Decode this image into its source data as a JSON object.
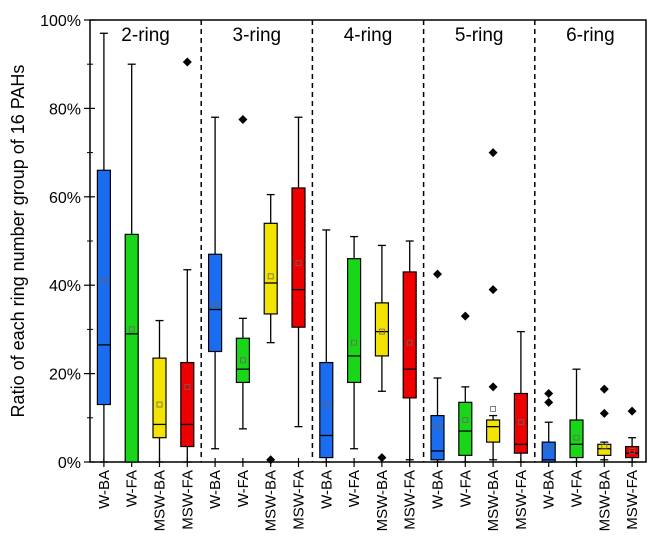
{
  "chart_data": {
    "type": "boxplot",
    "ylabel": "Ratio of each ring number group of 16 PAHs",
    "ylim": [
      0,
      100
    ],
    "y_ticks": [
      "0%",
      "20%",
      "40%",
      "60%",
      "80%",
      "100%"
    ],
    "y_tick_values": [
      0,
      20,
      40,
      60,
      80,
      100
    ],
    "grid": false,
    "colors": {
      "W-BA": "#1a6cf0",
      "W-FA": "#19d619",
      "MSW-BA": "#f3e300",
      "MSW-FA": "#ee0000"
    },
    "groups": [
      {
        "title": "2-ring",
        "boxes": [
          {
            "name": "W-BA",
            "whisker_low": 0,
            "q1": 13,
            "median": 26.5,
            "q3": 66,
            "whisker_high": 97,
            "mean": 41,
            "outliers": []
          },
          {
            "name": "W-FA",
            "whisker_low": 0,
            "q1": 0,
            "median": 29,
            "q3": 51.5,
            "whisker_high": 90,
            "mean": 30,
            "outliers": []
          },
          {
            "name": "MSW-BA",
            "whisker_low": 0,
            "q1": 5.5,
            "median": 8.5,
            "q3": 23.5,
            "whisker_high": 32,
            "mean": 13,
            "outliers": []
          },
          {
            "name": "MSW-FA",
            "whisker_low": 0,
            "q1": 3.5,
            "median": 8.5,
            "q3": 22.5,
            "whisker_high": 43.5,
            "mean": 17,
            "outliers": [
              90.5
            ]
          }
        ]
      },
      {
        "title": "3-ring",
        "boxes": [
          {
            "name": "W-BA",
            "whisker_low": 3,
            "q1": 25,
            "median": 34.5,
            "q3": 47,
            "whisker_high": 78,
            "mean": 35.5,
            "outliers": []
          },
          {
            "name": "W-FA",
            "whisker_low": 7.5,
            "q1": 18,
            "median": 21,
            "q3": 28,
            "whisker_high": 32.5,
            "mean": 23,
            "outliers": [
              77.5
            ]
          },
          {
            "name": "MSW-BA",
            "whisker_low": 27,
            "q1": 33.5,
            "median": 40.5,
            "q3": 54,
            "whisker_high": 60.5,
            "mean": 42,
            "outliers": [
              0.5
            ]
          },
          {
            "name": "MSW-FA",
            "whisker_low": 8,
            "q1": 30.5,
            "median": 39,
            "q3": 62,
            "whisker_high": 78,
            "mean": 45,
            "outliers": []
          }
        ]
      },
      {
        "title": "4-ring",
        "boxes": [
          {
            "name": "W-BA",
            "whisker_low": 0,
            "q1": 1,
            "median": 6,
            "q3": 22.5,
            "whisker_high": 52.5,
            "mean": 13,
            "outliers": []
          },
          {
            "name": "W-FA",
            "whisker_low": 3,
            "q1": 18,
            "median": 24,
            "q3": 46,
            "whisker_high": 51,
            "mean": 27,
            "outliers": []
          },
          {
            "name": "MSW-BA",
            "whisker_low": 16,
            "q1": 24,
            "median": 29.5,
            "q3": 36,
            "whisker_high": 49,
            "mean": 29.5,
            "outliers": [
              1
            ]
          },
          {
            "name": "MSW-FA",
            "whisker_low": 0.5,
            "q1": 14.5,
            "median": 21,
            "q3": 43,
            "whisker_high": 50,
            "mean": 27,
            "outliers": []
          }
        ]
      },
      {
        "title": "5-ring",
        "boxes": [
          {
            "name": "W-BA",
            "whisker_low": 0,
            "q1": 0.5,
            "median": 2.5,
            "q3": 10.5,
            "whisker_high": 19,
            "mean": 8,
            "outliers": [
              42.5
            ]
          },
          {
            "name": "W-FA",
            "whisker_low": 0,
            "q1": 1.5,
            "median": 7,
            "q3": 13.5,
            "whisker_high": 17,
            "mean": 9.5,
            "outliers": [
              33
            ]
          },
          {
            "name": "MSW-BA",
            "whisker_low": 0.5,
            "q1": 4.5,
            "median": 8,
            "q3": 9.5,
            "whisker_high": 10.5,
            "mean": 12,
            "outliers": [
              70,
              39,
              17
            ]
          },
          {
            "name": "MSW-FA",
            "whisker_low": 0,
            "q1": 2,
            "median": 4,
            "q3": 15.5,
            "whisker_high": 29.5,
            "mean": 9,
            "outliers": []
          }
        ]
      },
      {
        "title": "6-ring",
        "boxes": [
          {
            "name": "W-BA",
            "whisker_low": 0,
            "q1": 0,
            "median": 0.5,
            "q3": 4.5,
            "whisker_high": 9,
            "mean": 3,
            "outliers": [
              15.5,
              13.5
            ]
          },
          {
            "name": "W-FA",
            "whisker_low": 0,
            "q1": 1,
            "median": 4,
            "q3": 9.5,
            "whisker_high": 21,
            "mean": 5.5,
            "outliers": []
          },
          {
            "name": "MSW-BA",
            "whisker_low": 0.5,
            "q1": 1.5,
            "median": 3,
            "q3": 4,
            "whisker_high": 4.5,
            "mean": 3.5,
            "outliers": [
              16.5,
              11
            ]
          },
          {
            "name": "MSW-FA",
            "whisker_low": 0,
            "q1": 1,
            "median": 2,
            "q3": 3.5,
            "whisker_high": 5.5,
            "mean": 2.5,
            "outliers": [
              11.5
            ]
          }
        ]
      }
    ]
  }
}
